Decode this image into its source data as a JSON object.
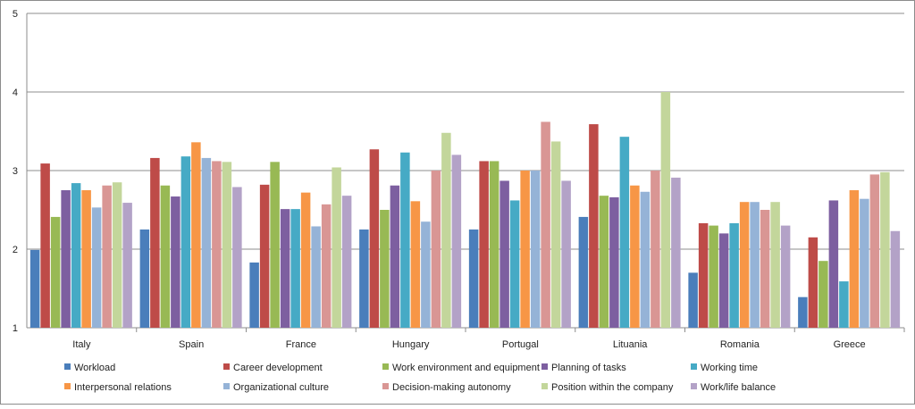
{
  "chart_data": {
    "type": "bar",
    "title": "",
    "xlabel": "",
    "ylabel": "",
    "ylim": [
      1,
      5
    ],
    "yticks": [
      "1",
      "2",
      "3",
      "4",
      "5"
    ],
    "grid": true,
    "legend_position": "bottom",
    "categories": [
      "Italy",
      "Spain",
      "France",
      "Hungary",
      "Portugal",
      "Lituania",
      "Romania",
      "Greece"
    ],
    "series": [
      {
        "name": "Workload",
        "color": "#4A7EBB",
        "values": [
          1.99,
          2.25,
          1.83,
          2.25,
          2.25,
          2.41,
          1.7,
          1.39
        ]
      },
      {
        "name": "Career development",
        "color": "#BE4B48",
        "values": [
          3.09,
          3.16,
          2.82,
          3.27,
          3.12,
          3.59,
          2.33,
          2.15
        ]
      },
      {
        "name": "Work environment and equipment",
        "color": "#98B954",
        "values": [
          2.41,
          2.81,
          3.11,
          2.5,
          3.12,
          2.68,
          2.3,
          1.85
        ]
      },
      {
        "name": "Planning of tasks",
        "color": "#7D5FA0",
        "values": [
          2.75,
          2.67,
          2.51,
          2.81,
          2.87,
          2.66,
          2.2,
          2.62
        ]
      },
      {
        "name": "Working time",
        "color": "#46AAC5",
        "values": [
          2.84,
          3.18,
          2.51,
          3.23,
          2.62,
          3.43,
          2.33,
          1.59
        ]
      },
      {
        "name": "Interpersonal relations",
        "color": "#F79646",
        "values": [
          2.75,
          3.36,
          2.72,
          2.61,
          3.0,
          2.81,
          2.6,
          2.75
        ]
      },
      {
        "name": "Organizational culture",
        "color": "#95B3D7",
        "values": [
          2.53,
          3.16,
          2.29,
          2.35,
          3.0,
          2.73,
          2.6,
          2.64
        ]
      },
      {
        "name": "Decision-making autonomy",
        "color": "#D99694",
        "values": [
          2.81,
          3.12,
          2.57,
          3.0,
          3.62,
          3.0,
          2.5,
          2.95
        ]
      },
      {
        "name": "Position within the company",
        "color": "#C3D69B",
        "values": [
          2.85,
          3.11,
          3.04,
          3.48,
          3.37,
          4.0,
          2.6,
          2.98
        ]
      },
      {
        "name": "Work/life balance",
        "color": "#B3A2C7",
        "values": [
          2.59,
          2.79,
          2.68,
          3.2,
          2.87,
          2.91,
          2.3,
          2.23
        ]
      }
    ]
  }
}
